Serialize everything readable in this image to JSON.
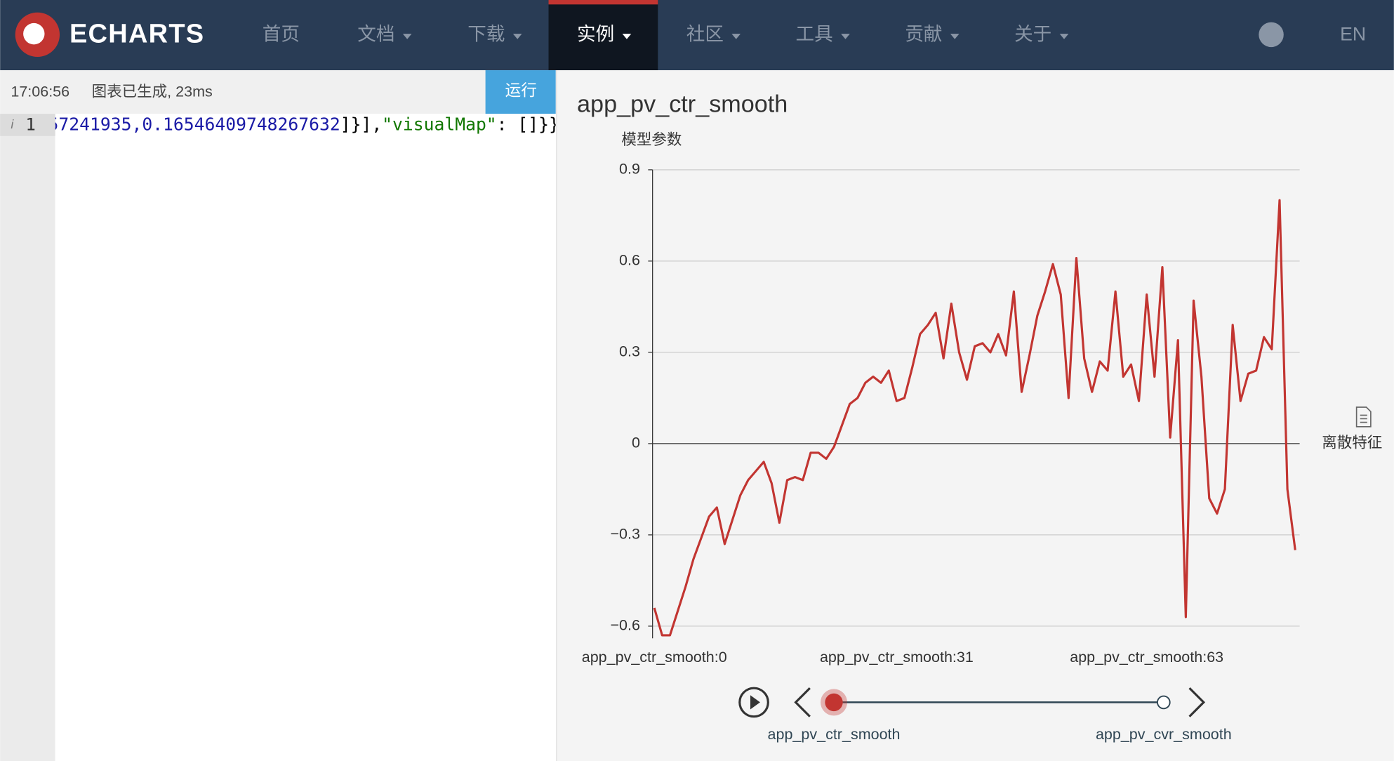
{
  "nav": {
    "logo": "ECHARTS",
    "items": [
      "首页",
      "文档",
      "下载",
      "实例",
      "社区",
      "工具",
      "贡献",
      "关于"
    ],
    "lang": "EN"
  },
  "toolbar": {
    "time": "17:06:56",
    "status": "图表已生成, 23ms",
    "run": "运行"
  },
  "editor": {
    "line_number": "1",
    "code": [
      "57241935,0.16546409748267632",
      "]}],",
      "\"visualMap\"",
      ": []}}"
    ]
  },
  "chart_data": {
    "type": "line",
    "title": "app_pv_ctr_smooth",
    "y_axis_label": "模型参数",
    "categories": [
      "app_pv_ctr_smooth:0",
      null,
      null,
      null,
      null,
      null,
      null,
      null,
      null,
      null,
      null,
      null,
      null,
      null,
      null,
      null,
      null,
      null,
      null,
      null,
      null,
      null,
      null,
      null,
      null,
      null,
      null,
      null,
      null,
      null,
      null,
      "app_pv_ctr_smooth:31",
      null,
      null,
      null,
      null,
      null,
      null,
      null,
      null,
      null,
      null,
      null,
      null,
      null,
      null,
      null,
      null,
      null,
      null,
      null,
      null,
      null,
      null,
      null,
      null,
      null,
      null,
      null,
      null,
      null,
      null,
      null,
      "app_pv_ctr_smooth:63",
      null,
      null,
      null,
      null,
      null,
      null,
      null,
      null,
      null,
      null,
      null,
      null,
      null,
      null,
      null,
      null,
      null,
      null,
      null
    ],
    "series": [
      {
        "name": "离散特征",
        "color": "#c23531",
        "values": [
          -0.54,
          -0.63,
          -0.63,
          -0.55,
          -0.47,
          -0.38,
          -0.31,
          -0.24,
          -0.21,
          -0.33,
          -0.25,
          -0.17,
          -0.12,
          -0.09,
          -0.06,
          -0.13,
          -0.26,
          -0.12,
          -0.11,
          -0.12,
          -0.03,
          -0.03,
          -0.05,
          -0.01,
          0.06,
          0.13,
          0.15,
          0.2,
          0.22,
          0.2,
          0.24,
          0.14,
          0.15,
          0.25,
          0.36,
          0.39,
          0.43,
          0.28,
          0.46,
          0.3,
          0.21,
          0.32,
          0.33,
          0.3,
          0.36,
          0.29,
          0.5,
          0.17,
          0.29,
          0.42,
          0.5,
          0.59,
          0.49,
          0.15,
          0.61,
          0.28,
          0.17,
          0.27,
          0.24,
          0.5,
          0.22,
          0.26,
          0.14,
          0.49,
          0.22,
          0.58,
          0.02,
          0.34,
          -0.57,
          0.47,
          0.22,
          -0.18,
          -0.23,
          -0.15,
          0.39,
          0.14,
          0.23,
          0.24,
          0.35,
          0.31,
          0.8,
          -0.15,
          -0.35
        ]
      }
    ],
    "ylim": [
      -0.64,
      0.9
    ],
    "yticks": [
      {
        "value": -0.6,
        "label": "−0.6"
      },
      {
        "value": -0.3,
        "label": "−0.3"
      },
      0,
      0.3,
      0.6,
      0.9
    ],
    "grid": true,
    "timeline": [
      "app_pv_ctr_smooth",
      "app_pv_cvr_smooth"
    ]
  }
}
